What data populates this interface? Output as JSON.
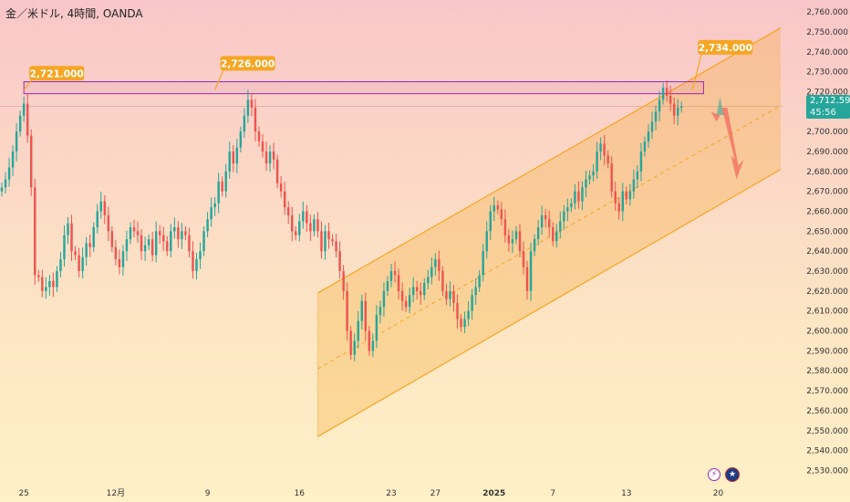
{
  "header": {
    "title": "金／米ドル, 4時間, OANDA"
  },
  "price_labels": {
    "last_price": "2,712.590",
    "countdown": "45:56"
  },
  "icons": {
    "flash": "lightning-icon",
    "flag": "us-flag-icon"
  },
  "colors": {
    "up": "#26a69a",
    "down": "#ef5350",
    "channel": "#f5a623",
    "callout": "#f5a623",
    "resistance_box": "#9c27b0",
    "price_badge": "#26a69a"
  },
  "chart_data": {
    "type": "candlestick",
    "title": "金／米ドル, 4時間, OANDA",
    "ylim": [
      2527,
      2766
    ],
    "y_ticks": [
      2530,
      2540,
      2550,
      2560,
      2570,
      2580,
      2590,
      2600,
      2610,
      2620,
      2630,
      2640,
      2650,
      2660,
      2670,
      2680,
      2690,
      2700,
      2710,
      2720,
      2730,
      2740,
      2750,
      2760
    ],
    "y_tick_labels": [
      "2,530.000",
      "2,540.000",
      "2,550.000",
      "2,560.000",
      "2,570.000",
      "2,580.000",
      "2,590.000",
      "2,600.000",
      "2,610.000",
      "2,620.000",
      "2,630.000",
      "2,640.000",
      "2,650.000",
      "2,660.000",
      "2,670.000",
      "2,680.000",
      "2,690.000",
      "2,700.000",
      "2,710.000",
      "2,720.000",
      "2,730.000",
      "2,740.000",
      "2,750.000",
      "2,760.000"
    ],
    "x_ticks": [
      {
        "bar": 6,
        "label": "25",
        "bold": false
      },
      {
        "bar": 31,
        "label": "12月",
        "bold": false
      },
      {
        "bar": 56,
        "label": "9",
        "bold": false
      },
      {
        "bar": 81,
        "label": "16",
        "bold": false
      },
      {
        "bar": 106,
        "label": "23",
        "bold": false
      },
      {
        "bar": 118,
        "label": "27",
        "bold": false
      },
      {
        "bar": 134,
        "label": "2025",
        "bold": true
      },
      {
        "bar": 150,
        "label": "7",
        "bold": false
      },
      {
        "bar": 170,
        "label": "13",
        "bold": false
      },
      {
        "bar": 195,
        "label": "20",
        "bold": false
      }
    ],
    "bars": 212,
    "candles_close": [
      2672,
      2676,
      2682,
      2690,
      2700,
      2708,
      2714,
      2698,
      2672,
      2628,
      2627,
      2620,
      2622,
      2625,
      2622,
      2630,
      2636,
      2648,
      2654,
      2640,
      2638,
      2630,
      2637,
      2644,
      2642,
      2652,
      2660,
      2665,
      2658,
      2650,
      2642,
      2636,
      2632,
      2640,
      2646,
      2652,
      2650,
      2648,
      2640,
      2643,
      2646,
      2638,
      2650,
      2648,
      2645,
      2640,
      2650,
      2652,
      2646,
      2650,
      2648,
      2640,
      2630,
      2636,
      2640,
      2650,
      2656,
      2662,
      2664,
      2675,
      2670,
      2680,
      2690,
      2684,
      2692,
      2700,
      2708,
      2716,
      2712,
      2700,
      2695,
      2690,
      2684,
      2690,
      2686,
      2674,
      2670,
      2662,
      2658,
      2650,
      2648,
      2655,
      2660,
      2654,
      2650,
      2656,
      2650,
      2640,
      2650,
      2646,
      2645,
      2640,
      2630,
      2620,
      2600,
      2588,
      2595,
      2605,
      2615,
      2600,
      2590,
      2595,
      2608,
      2612,
      2620,
      2625,
      2630,
      2628,
      2620,
      2615,
      2612,
      2618,
      2622,
      2620,
      2618,
      2624,
      2627,
      2632,
      2636,
      2630,
      2620,
      2616,
      2620,
      2614,
      2606,
      2602,
      2606,
      2610,
      2618,
      2622,
      2628,
      2640,
      2650,
      2660,
      2663,
      2661,
      2656,
      2648,
      2644,
      2646,
      2650,
      2640,
      2632,
      2620,
      2640,
      2646,
      2652,
      2658,
      2656,
      2652,
      2645,
      2650,
      2655,
      2660,
      2662,
      2664,
      2670,
      2665,
      2672,
      2676,
      2678,
      2680,
      2690,
      2694,
      2688,
      2684,
      2670,
      2664,
      2660,
      2670,
      2666,
      2670,
      2676,
      2680,
      2690,
      2695,
      2700,
      2705,
      2710,
      2716,
      2722,
      2718,
      2714,
      2708,
      2712,
      2712.59
    ],
    "callouts": [
      {
        "label": "2,721.000",
        "bar": 6,
        "value": 2721
      },
      {
        "label": "2,726.000",
        "bar": 58,
        "value": 2726
      },
      {
        "label": "2,734.000",
        "bar": 188,
        "value": 2734
      }
    ],
    "resistance_zone": {
      "from_bar": 6,
      "to_bar": 191,
      "low": 2719,
      "high": 2725
    },
    "channel": {
      "upper": [
        {
          "bar": 86,
          "value": 2619
        },
        {
          "bar": 212,
          "value": 2752
        }
      ],
      "middle": [
        {
          "bar": 86,
          "value": 2581
        },
        {
          "bar": 212,
          "value": 2713
        }
      ],
      "lower": [
        {
          "bar": 86,
          "value": 2547
        },
        {
          "bar": 212,
          "value": 2681
        }
      ]
    },
    "last_price": 2712.59
  }
}
